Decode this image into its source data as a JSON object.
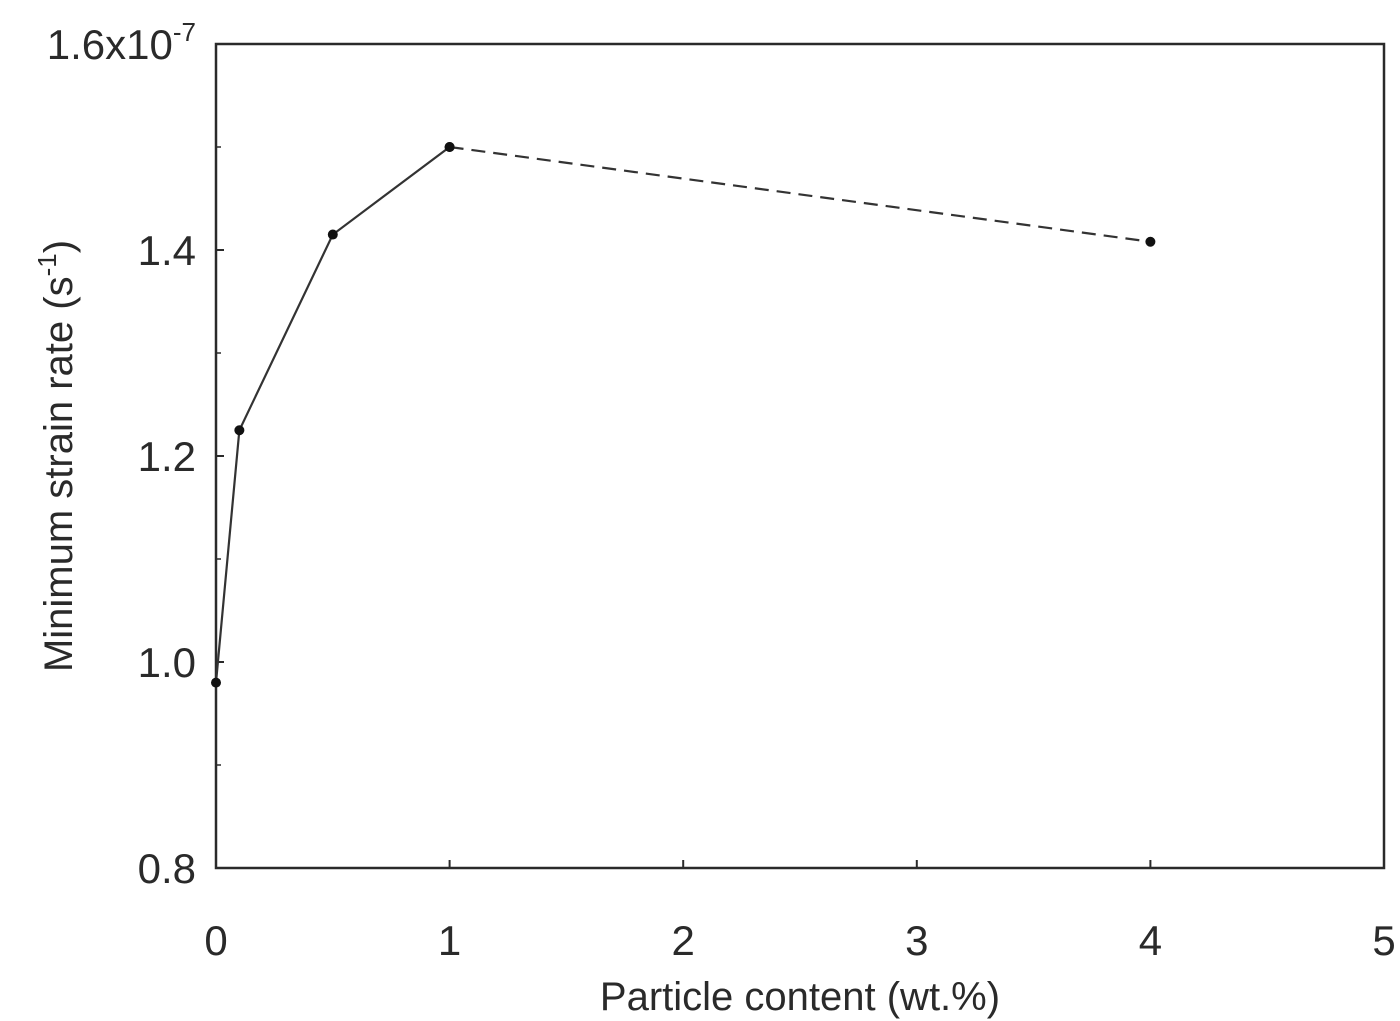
{
  "chart_data": {
    "type": "line",
    "xlabel": "Particle content (wt.%)",
    "ylabel": "Minimum strain rate (s",
    "ylabel_superscript": "-1",
    "ylabel_close": ")",
    "xlim": [
      0,
      5
    ],
    "ylim": [
      0.8,
      1.6
    ],
    "x_ticks": [
      {
        "value": 0,
        "label": "0"
      },
      {
        "value": 1,
        "label": "1"
      },
      {
        "value": 2,
        "label": "2"
      },
      {
        "value": 3,
        "label": "3"
      },
      {
        "value": 4,
        "label": "4"
      },
      {
        "value": 5,
        "label": "5"
      }
    ],
    "y_ticks": [
      {
        "value": 0.8,
        "label": "0.8"
      },
      {
        "value": 1.0,
        "label": "1.0"
      },
      {
        "value": 1.2,
        "label": "1.2"
      },
      {
        "value": 1.4,
        "label": "1.4"
      },
      {
        "value": 1.6,
        "label": "1.6x10",
        "superscript": "-7"
      }
    ],
    "y_minor_ticks": [
      0.9,
      1.1,
      1.3,
      1.5
    ],
    "grid": false,
    "series": [
      {
        "style": "solid",
        "color": "#333333",
        "points": [
          {
            "x": 0,
            "y": 0.98
          },
          {
            "x": 0.1,
            "y": 1.225
          },
          {
            "x": 0.5,
            "y": 1.415
          },
          {
            "x": 1.0,
            "y": 1.5
          }
        ]
      },
      {
        "style": "dashed",
        "color": "#333333",
        "points": [
          {
            "x": 1.0,
            "y": 1.5
          },
          {
            "x": 4.0,
            "y": 1.408
          }
        ]
      }
    ]
  }
}
